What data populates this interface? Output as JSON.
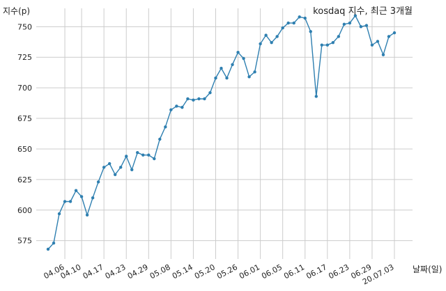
{
  "chart_data": {
    "type": "line",
    "title": "kosdaq 지수, 최근 3개월",
    "ylabel": "지수(p)",
    "xlabel": "날짜(일)",
    "ylim": [
      560,
      765
    ],
    "yticks": [
      575,
      600,
      625,
      650,
      675,
      700,
      725,
      750
    ],
    "grid": true,
    "line_color": "#2e7fb0",
    "xtick_labels": [
      "04.06",
      "04.10",
      "04.17",
      "04.23",
      "04.29",
      "05.08",
      "05.14",
      "05.20",
      "05.26",
      "06.01",
      "06.05",
      "06.11",
      "06.17",
      "06.23",
      "06.29",
      "20.07.03"
    ],
    "xtick_index": [
      3,
      6,
      10,
      14,
      18,
      22,
      26,
      30,
      34,
      38,
      42,
      46,
      50,
      54,
      58,
      62
    ],
    "series": [
      {
        "values": [
          568,
          573,
          597,
          607,
          607,
          616,
          611,
          596,
          610,
          623,
          635,
          638,
          629,
          635,
          644,
          633,
          647,
          645,
          645,
          642,
          658,
          668,
          682,
          685,
          684,
          691,
          690,
          691,
          691,
          696,
          708,
          716,
          708,
          719,
          729,
          724,
          709,
          713,
          736,
          743,
          737,
          742,
          749,
          753,
          753,
          758,
          757,
          746,
          693,
          735,
          735,
          737,
          742,
          752,
          753,
          759,
          750,
          751,
          735,
          738,
          727,
          742,
          745
        ]
      }
    ]
  }
}
